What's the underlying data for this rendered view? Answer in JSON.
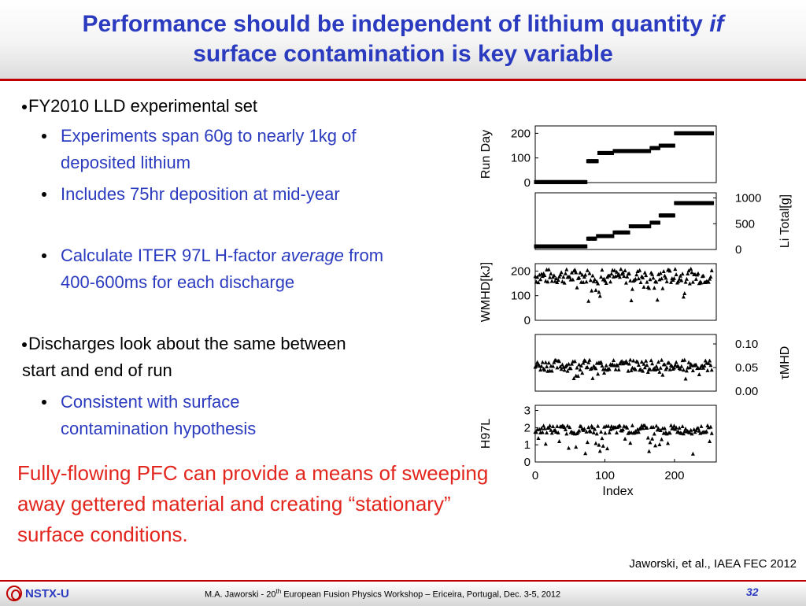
{
  "title": {
    "line1_main": "Performance should be independent of lithium quantity ",
    "line1_italic": "if",
    "line2": "surface contamination is key variable"
  },
  "bullets": {
    "b1_label": "FY2010 LLD experimental set",
    "b1_sub1": "Experiments span 60g to nearly 1kg of deposited lithium",
    "b1_sub2": "Includes 75hr deposition at mid-year",
    "b1_sub3_prefix": "Calculate ITER 97L H-factor ",
    "b1_sub3_italic": "average",
    "b1_sub3_suffix": " from 400-600ms for each discharge",
    "b2_label": "Discharges look about the same between start and end of run",
    "b2_sub1": "Consistent with surface contamination hypothesis"
  },
  "highlight": "Fully-flowing PFC can provide a means of sweeping away gettered material and creating “stationary” surface conditions.",
  "citation": "Jaworski, et al., IAEA FEC 2012",
  "footer": {
    "logo_text": "NSTX-U",
    "text_prefix": "M.A. Jaworski - 20",
    "text_sup": "th",
    "text_suffix": " European Fusion Physics Workshop – Ericeira, Portugal, Dec. 3-5, 2012",
    "page_number": "32"
  },
  "colors": {
    "title_blue": "#2b3bbf",
    "accent_red": "#c00000",
    "highlight_red": "#e3261d"
  },
  "chart_data": {
    "type": "scatter",
    "xlabel": "Index",
    "x_ticks": [
      "0",
      "100",
      "200"
    ],
    "xlim": [
      0,
      260
    ],
    "panels": [
      {
        "ylabel": "Run Day",
        "ylabel_side": "left",
        "yticks": [
          "0",
          "100",
          "200"
        ],
        "yticks_side": "left",
        "ylim": [
          0,
          230
        ],
        "marker": "square",
        "steps": [
          [
            0,
            74,
            2
          ],
          [
            75,
            90,
            87
          ],
          [
            91,
            112,
            120
          ],
          [
            113,
            165,
            128
          ],
          [
            166,
            178,
            140
          ],
          [
            179,
            200,
            150
          ],
          [
            201,
            255,
            200
          ]
        ]
      },
      {
        "ylabel": "Li Total[g]",
        "ylabel_side": "right",
        "yticks": [
          "0",
          "500",
          "1000"
        ],
        "yticks_side": "right",
        "ylim": [
          0,
          1100
        ],
        "marker": "square",
        "steps": [
          [
            0,
            74,
            60
          ],
          [
            75,
            88,
            210
          ],
          [
            89,
            112,
            260
          ],
          [
            113,
            135,
            330
          ],
          [
            136,
            165,
            450
          ],
          [
            166,
            178,
            520
          ],
          [
            179,
            200,
            660
          ],
          [
            201,
            255,
            900
          ]
        ]
      },
      {
        "ylabel": "WMHD[kJ]",
        "ylabel_side": "left",
        "yticks": [
          "0",
          "100",
          "200"
        ],
        "yticks_side": "left",
        "ylim": [
          0,
          230
        ],
        "marker": "triangle",
        "base": 180,
        "spread": 30,
        "dip_depth": 60
      },
      {
        "ylabel": "τMHD",
        "ylabel_side": "right",
        "yticks": [
          "0.00",
          "0.05",
          "0.10"
        ],
        "yticks_side": "right",
        "ylim": [
          0,
          0.12
        ],
        "marker": "triangle",
        "base": 0.055,
        "spread": 0.012,
        "dip_depth": 0.015
      },
      {
        "ylabel": "H97L",
        "ylabel_side": "left",
        "yticks": [
          "0",
          "1",
          "2",
          "3"
        ],
        "yticks_side": "left",
        "ylim": [
          0,
          3.3
        ],
        "marker": "triangle",
        "base": 1.9,
        "spread": 0.25,
        "dip_depth": 0.8
      }
    ]
  }
}
